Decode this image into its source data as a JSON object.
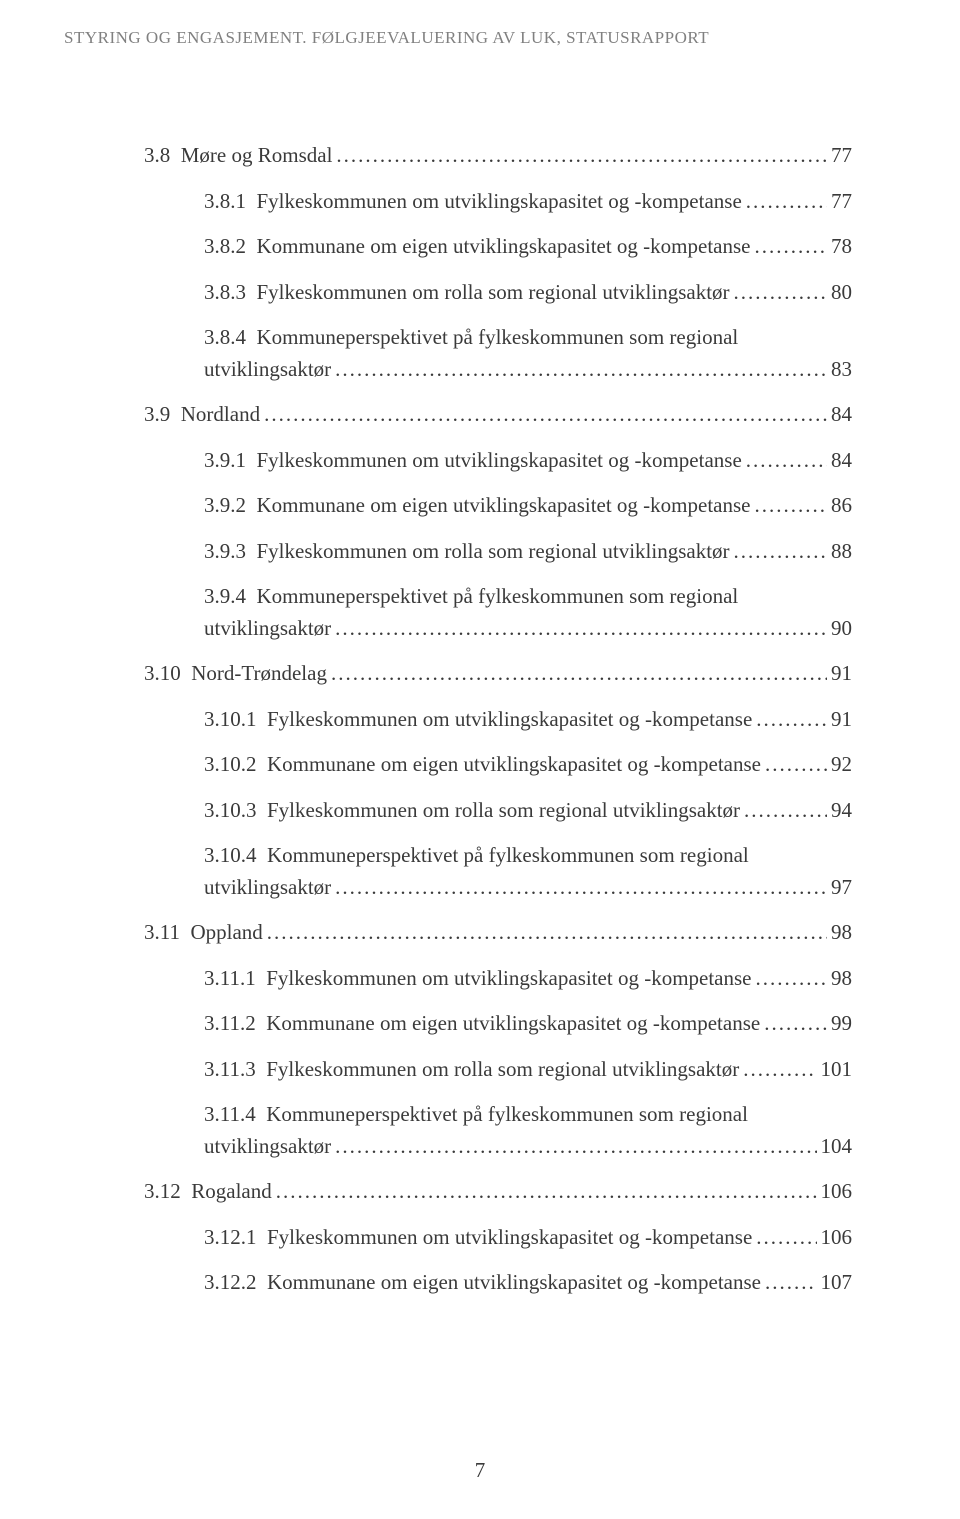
{
  "header": "STYRING OG ENGASJEMENT. FØLGJEEVALUERING AV LUK, STATUSRAPPORT",
  "page_number": "7",
  "toc_entries": [
    {
      "level": 1,
      "prefix": "3.8",
      "title": "Møre og Romsdal",
      "page": "77",
      "wrapped": false
    },
    {
      "level": 2,
      "prefix": "3.8.1",
      "title": "Fylkeskommunen om utviklingskapasitet og -kompetanse",
      "page": "77",
      "wrapped": false
    },
    {
      "level": 2,
      "prefix": "3.8.2",
      "title": "Kommunane om eigen utviklingskapasitet og -kompetanse",
      "page": "78",
      "wrapped": false
    },
    {
      "level": 2,
      "prefix": "3.8.3",
      "title": "Fylkeskommunen om rolla som regional utviklingsaktør",
      "page": "80",
      "wrapped": false
    },
    {
      "level": 2,
      "prefix": "3.8.4",
      "title1": "Kommuneperspektivet på fylkeskommunen som regional",
      "title2": "utviklingsaktør",
      "page": "83",
      "wrapped": true
    },
    {
      "level": 1,
      "prefix": "3.9",
      "title": "Nordland",
      "page": "84",
      "wrapped": false
    },
    {
      "level": 2,
      "prefix": "3.9.1",
      "title": "Fylkeskommunen om utviklingskapasitet og -kompetanse",
      "page": "84",
      "wrapped": false
    },
    {
      "level": 2,
      "prefix": "3.9.2",
      "title": "Kommunane om eigen utviklingskapasitet og -kompetanse",
      "page": "86",
      "wrapped": false
    },
    {
      "level": 2,
      "prefix": "3.9.3",
      "title": "Fylkeskommunen om rolla som regional utviklingsaktør",
      "page": "88",
      "wrapped": false
    },
    {
      "level": 2,
      "prefix": "3.9.4",
      "title1": "Kommuneperspektivet på fylkeskommunen som regional",
      "title2": "utviklingsaktør",
      "page": "90",
      "wrapped": true
    },
    {
      "level": 1,
      "prefix": "3.10",
      "title": "Nord-Trøndelag",
      "page": "91",
      "wrapped": false
    },
    {
      "level": 2,
      "prefix": "3.10.1",
      "title": "Fylkeskommunen om utviklingskapasitet og -kompetanse",
      "page": "91",
      "wrapped": false
    },
    {
      "level": 2,
      "prefix": "3.10.2",
      "title": "Kommunane om eigen utviklingskapasitet og -kompetanse",
      "page": "92",
      "wrapped": false
    },
    {
      "level": 2,
      "prefix": "3.10.3",
      "title": "Fylkeskommunen om rolla som regional utviklingsaktør",
      "page": "94",
      "wrapped": false
    },
    {
      "level": 2,
      "prefix": "3.10.4",
      "title1": "Kommuneperspektivet på fylkeskommunen som regional",
      "title2": "utviklingsaktør",
      "page": "97",
      "wrapped": true
    },
    {
      "level": 1,
      "prefix": "3.11",
      "title": "Oppland",
      "page": "98",
      "wrapped": false
    },
    {
      "level": 2,
      "prefix": "3.11.1",
      "title": "Fylkeskommunen om utviklingskapasitet og -kompetanse",
      "page": "98",
      "wrapped": false
    },
    {
      "level": 2,
      "prefix": "3.11.2",
      "title": "Kommunane om eigen utviklingskapasitet og -kompetanse",
      "page": "99",
      "wrapped": false
    },
    {
      "level": 2,
      "prefix": "3.11.3",
      "title": "Fylkeskommunen om rolla som regional utviklingsaktør",
      "page": "101",
      "wrapped": false
    },
    {
      "level": 2,
      "prefix": "3.11.4",
      "title1": "Kommuneperspektivet på fylkeskommunen som regional",
      "title2": "utviklingsaktør",
      "page": "104",
      "wrapped": true
    },
    {
      "level": 1,
      "prefix": "3.12",
      "title": "Rogaland",
      "page": "106",
      "wrapped": false
    },
    {
      "level": 2,
      "prefix": "3.12.1",
      "title": "Fylkeskommunen om utviklingskapasitet og -kompetanse",
      "page": "106",
      "wrapped": false
    },
    {
      "level": 2,
      "prefix": "3.12.2",
      "title": "Kommunane om eigen utviklingskapasitet og -kompetanse",
      "page": "107",
      "wrapped": false
    }
  ]
}
